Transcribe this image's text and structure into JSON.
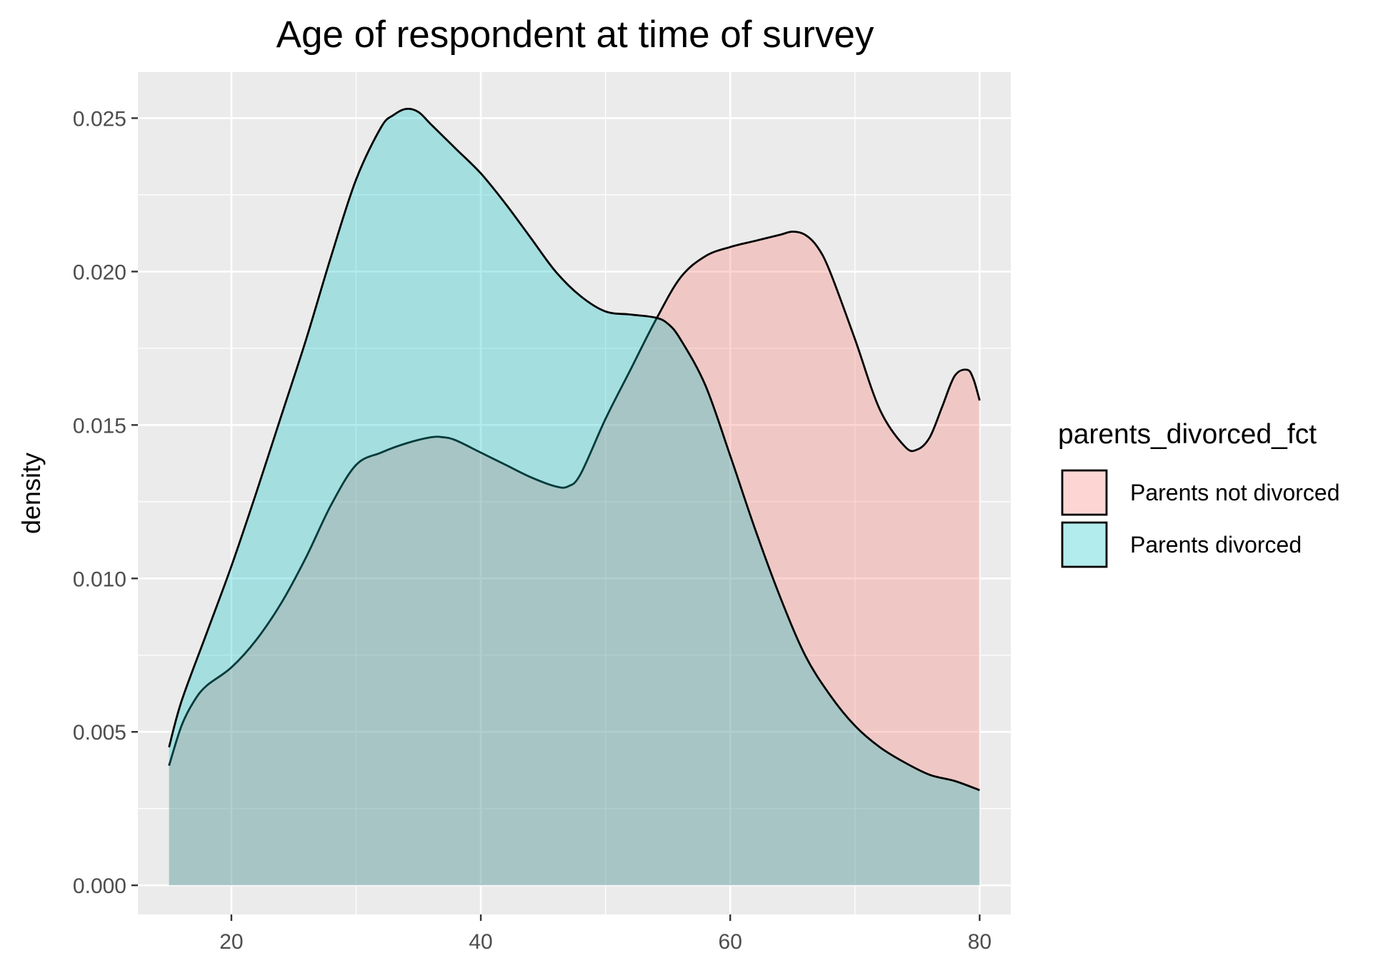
{
  "chart_data": {
    "type": "area",
    "title": "Age of respondent at time of survey",
    "xlabel": "",
    "ylabel": "density",
    "xlim": [
      12.5,
      82.5
    ],
    "ylim": [
      -0.00095,
      0.0265
    ],
    "x_ticks": [
      20,
      40,
      60,
      80
    ],
    "y_ticks": [
      0.0,
      0.005,
      0.01,
      0.015,
      0.02,
      0.025
    ],
    "y_tick_labels": [
      "0.000",
      "0.005",
      "0.010",
      "0.015",
      "0.020",
      "0.025"
    ],
    "grid": true,
    "legend_position": "right",
    "legend_title": "parents_divorced_fct",
    "series": [
      {
        "name": "Parents not divorced",
        "fill": "#F8766D",
        "x": [
          15,
          16,
          17,
          18,
          20,
          22,
          24,
          26,
          28,
          30,
          32,
          34,
          36,
          37,
          38,
          40,
          42,
          44,
          46,
          47,
          48,
          50,
          52,
          54,
          56,
          58,
          60,
          62,
          64,
          65,
          66,
          67,
          68,
          70,
          72,
          74,
          75,
          76,
          77,
          78,
          79,
          79.5,
          80
        ],
        "y": [
          0.0039,
          0.0052,
          0.006,
          0.0065,
          0.0071,
          0.008,
          0.0092,
          0.0107,
          0.0124,
          0.0137,
          0.0141,
          0.0144,
          0.0146,
          0.0146,
          0.0145,
          0.0141,
          0.0137,
          0.0133,
          0.013,
          0.013,
          0.0134,
          0.0152,
          0.0168,
          0.0184,
          0.0198,
          0.0205,
          0.0208,
          0.021,
          0.0212,
          0.0213,
          0.0212,
          0.0208,
          0.02,
          0.0178,
          0.0155,
          0.0143,
          0.0142,
          0.0146,
          0.0156,
          0.0166,
          0.0168,
          0.0165,
          0.0158
        ]
      },
      {
        "name": "Parents divorced",
        "fill": "#00BFC4",
        "x": [
          15,
          16,
          18,
          20,
          22,
          24,
          26,
          28,
          30,
          32,
          33,
          34,
          35,
          36,
          38,
          40,
          42,
          44,
          46,
          48,
          50,
          52,
          54,
          55,
          56,
          58,
          60,
          62,
          64,
          66,
          68,
          70,
          72,
          74,
          76,
          78,
          80
        ],
        "y": [
          0.0045,
          0.006,
          0.0082,
          0.0104,
          0.0128,
          0.0153,
          0.0178,
          0.0205,
          0.023,
          0.0247,
          0.0251,
          0.0253,
          0.0252,
          0.0248,
          0.024,
          0.0232,
          0.0222,
          0.0211,
          0.02,
          0.0192,
          0.0187,
          0.0186,
          0.0185,
          0.0183,
          0.0178,
          0.0163,
          0.014,
          0.0116,
          0.0094,
          0.0075,
          0.0062,
          0.0052,
          0.0045,
          0.004,
          0.0036,
          0.0034,
          0.0031
        ]
      }
    ]
  }
}
